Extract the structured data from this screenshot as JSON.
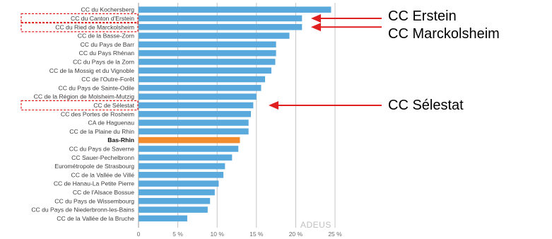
{
  "chart_data": {
    "type": "bar",
    "orientation": "horizontal",
    "categories": [
      "CC du Kochersberg",
      "CC du Canton d'Erstein",
      "CC du Ried de Marckolsheim",
      "CC de la Basse-Zorn",
      "CC du Pays de Barr",
      "CC du Pays Rhénan",
      "CC du Pays de la Zorn",
      "CC de la Mossig et du Vignoble",
      "CC de l'Outre-Forêt",
      "CC du Pays de Sainte-Odile",
      "CC de la Région de Molsheim-Mutzig",
      "CC de Sélestat",
      "CC des Portes de Rosheim",
      "CA de Haguenau",
      "CC de la Plaine du Rhin",
      "Bas-Rhin",
      "CC du Pays de Saverne",
      "CC Sauer-Pechelbronn",
      "Eurométropole de Strasbourg",
      "CC de la Vallée de Villé",
      "CC de Hanau-La Petite Pierre",
      "CC de l'Alsace Bossue",
      "CC du Pays de Wissembourg",
      "CC du Pays de Niederbronn-les-Bains",
      "CC de la Vallée de la Bruche"
    ],
    "values": [
      24.5,
      20.8,
      20.8,
      19.2,
      17.5,
      17.5,
      17.4,
      16.9,
      16.1,
      15.6,
      15.0,
      14.6,
      14.3,
      14.0,
      14.0,
      12.9,
      12.7,
      11.9,
      11.0,
      10.8,
      10.2,
      9.7,
      9.1,
      8.8,
      6.2
    ],
    "highlight_category": "Bas-Rhin",
    "xticks": [
      "0",
      "5 %",
      "10 %",
      "15 %",
      "20 %",
      "25 %"
    ],
    "xlim": [
      0,
      25
    ],
    "grid": true,
    "colors": {
      "bar": "#5aa9dd",
      "highlight": "#f28c2e",
      "grid": "#c4c4c4",
      "box": "#e02020",
      "arrow": "#e02020"
    }
  },
  "watermark": "ADEUS",
  "annotations": [
    {
      "text": "CC Erstein",
      "target": "CC du Canton d'Erstein"
    },
    {
      "text": "CC Marckolsheim",
      "target": "CC du Ried de Marckolsheim"
    },
    {
      "text": "CC Sélestat",
      "target": "CC de Sélestat"
    }
  ]
}
